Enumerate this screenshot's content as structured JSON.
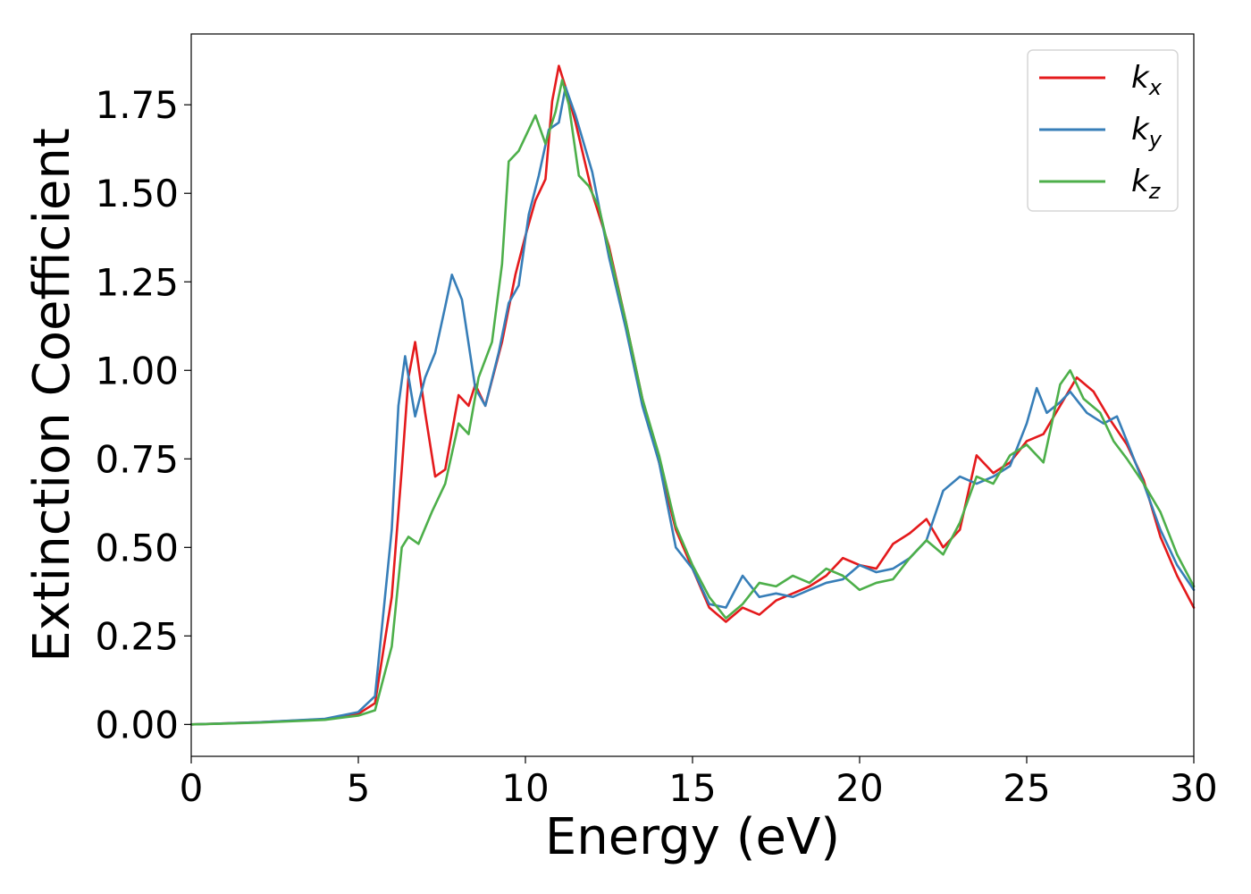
{
  "chart_data": {
    "type": "line",
    "xlabel": "Energy (eV)",
    "ylabel": "Extinction Coefficient",
    "xlim": [
      0,
      30
    ],
    "ylim": [
      -0.09,
      1.95
    ],
    "x_ticks": [
      0,
      5,
      10,
      15,
      20,
      25,
      30
    ],
    "y_ticks": [
      0.0,
      0.25,
      0.5,
      0.75,
      1.0,
      1.25,
      1.5,
      1.75
    ],
    "x_tick_labels": [
      "0",
      "5",
      "10",
      "15",
      "20",
      "25",
      "30"
    ],
    "y_tick_labels": [
      "0.00",
      "0.25",
      "0.50",
      "0.75",
      "1.00",
      "1.25",
      "1.50",
      "1.75"
    ],
    "grid": false,
    "legend_position": "top-right",
    "series": [
      {
        "name": "k_x",
        "legend_base": "k",
        "legend_sub": "x",
        "color": "#e41a1c",
        "points": [
          [
            0,
            0
          ],
          [
            2,
            0.006
          ],
          [
            4,
            0.015
          ],
          [
            5,
            0.03
          ],
          [
            5.5,
            0.06
          ],
          [
            6.0,
            0.36
          ],
          [
            6.3,
            0.72
          ],
          [
            6.5,
            0.98
          ],
          [
            6.7,
            1.08
          ],
          [
            7.0,
            0.88
          ],
          [
            7.3,
            0.7
          ],
          [
            7.6,
            0.72
          ],
          [
            8.0,
            0.93
          ],
          [
            8.3,
            0.9
          ],
          [
            8.5,
            0.96
          ],
          [
            8.8,
            0.9
          ],
          [
            9.3,
            1.08
          ],
          [
            9.7,
            1.27
          ],
          [
            10.0,
            1.38
          ],
          [
            10.3,
            1.48
          ],
          [
            10.6,
            1.54
          ],
          [
            10.8,
            1.76
          ],
          [
            11.0,
            1.86
          ],
          [
            11.2,
            1.8
          ],
          [
            11.5,
            1.7
          ],
          [
            12.0,
            1.5
          ],
          [
            12.5,
            1.35
          ],
          [
            13.0,
            1.14
          ],
          [
            13.5,
            0.92
          ],
          [
            14.0,
            0.74
          ],
          [
            14.5,
            0.55
          ],
          [
            15.0,
            0.44
          ],
          [
            15.5,
            0.33
          ],
          [
            16.0,
            0.29
          ],
          [
            16.5,
            0.33
          ],
          [
            17.0,
            0.31
          ],
          [
            17.5,
            0.35
          ],
          [
            18.0,
            0.37
          ],
          [
            18.5,
            0.39
          ],
          [
            19.0,
            0.42
          ],
          [
            19.5,
            0.47
          ],
          [
            20.0,
            0.45
          ],
          [
            20.5,
            0.44
          ],
          [
            21.0,
            0.51
          ],
          [
            21.5,
            0.54
          ],
          [
            22.0,
            0.58
          ],
          [
            22.5,
            0.5
          ],
          [
            23.0,
            0.55
          ],
          [
            23.5,
            0.76
          ],
          [
            24.0,
            0.71
          ],
          [
            24.5,
            0.74
          ],
          [
            25.0,
            0.8
          ],
          [
            25.5,
            0.82
          ],
          [
            26.0,
            0.9
          ],
          [
            26.5,
            0.98
          ],
          [
            27.0,
            0.94
          ],
          [
            27.5,
            0.86
          ],
          [
            28.0,
            0.79
          ],
          [
            28.5,
            0.69
          ],
          [
            29.0,
            0.53
          ],
          [
            29.5,
            0.42
          ],
          [
            30.0,
            0.33
          ]
        ]
      },
      {
        "name": "k_y",
        "legend_base": "k",
        "legend_sub": "y",
        "color": "#377eb8",
        "points": [
          [
            0,
            0
          ],
          [
            2,
            0.006
          ],
          [
            4,
            0.016
          ],
          [
            5,
            0.035
          ],
          [
            5.5,
            0.08
          ],
          [
            6.0,
            0.55
          ],
          [
            6.2,
            0.9
          ],
          [
            6.4,
            1.04
          ],
          [
            6.7,
            0.87
          ],
          [
            7.0,
            0.98
          ],
          [
            7.3,
            1.05
          ],
          [
            7.6,
            1.18
          ],
          [
            7.8,
            1.27
          ],
          [
            8.1,
            1.2
          ],
          [
            8.5,
            0.95
          ],
          [
            8.8,
            0.9
          ],
          [
            9.2,
            1.05
          ],
          [
            9.5,
            1.19
          ],
          [
            9.8,
            1.24
          ],
          [
            10.1,
            1.44
          ],
          [
            10.4,
            1.55
          ],
          [
            10.7,
            1.68
          ],
          [
            11.0,
            1.7
          ],
          [
            11.2,
            1.8
          ],
          [
            11.5,
            1.72
          ],
          [
            12.0,
            1.56
          ],
          [
            12.5,
            1.32
          ],
          [
            13.0,
            1.12
          ],
          [
            13.5,
            0.9
          ],
          [
            14.0,
            0.74
          ],
          [
            14.5,
            0.5
          ],
          [
            15.0,
            0.44
          ],
          [
            15.5,
            0.34
          ],
          [
            16.0,
            0.33
          ],
          [
            16.5,
            0.42
          ],
          [
            17.0,
            0.36
          ],
          [
            17.5,
            0.37
          ],
          [
            18.0,
            0.36
          ],
          [
            18.5,
            0.38
          ],
          [
            19.0,
            0.4
          ],
          [
            19.5,
            0.41
          ],
          [
            20.0,
            0.45
          ],
          [
            20.5,
            0.43
          ],
          [
            21.0,
            0.44
          ],
          [
            21.5,
            0.47
          ],
          [
            22.0,
            0.52
          ],
          [
            22.5,
            0.66
          ],
          [
            23.0,
            0.7
          ],
          [
            23.5,
            0.68
          ],
          [
            24.0,
            0.7
          ],
          [
            24.5,
            0.73
          ],
          [
            25.0,
            0.85
          ],
          [
            25.3,
            0.95
          ],
          [
            25.6,
            0.88
          ],
          [
            26.0,
            0.91
          ],
          [
            26.3,
            0.94
          ],
          [
            26.8,
            0.88
          ],
          [
            27.3,
            0.85
          ],
          [
            27.7,
            0.87
          ],
          [
            28.0,
            0.8
          ],
          [
            28.5,
            0.68
          ],
          [
            29.0,
            0.55
          ],
          [
            29.5,
            0.45
          ],
          [
            30.0,
            0.38
          ]
        ]
      },
      {
        "name": "k_z",
        "legend_base": "k",
        "legend_sub": "z",
        "color": "#4daf4a",
        "points": [
          [
            0,
            0
          ],
          [
            2,
            0.005
          ],
          [
            4,
            0.013
          ],
          [
            5,
            0.025
          ],
          [
            5.5,
            0.04
          ],
          [
            6.0,
            0.22
          ],
          [
            6.3,
            0.5
          ],
          [
            6.5,
            0.53
          ],
          [
            6.8,
            0.51
          ],
          [
            7.2,
            0.6
          ],
          [
            7.6,
            0.68
          ],
          [
            8.0,
            0.85
          ],
          [
            8.3,
            0.82
          ],
          [
            8.6,
            0.98
          ],
          [
            9.0,
            1.08
          ],
          [
            9.3,
            1.3
          ],
          [
            9.5,
            1.59
          ],
          [
            9.8,
            1.62
          ],
          [
            10.1,
            1.68
          ],
          [
            10.3,
            1.72
          ],
          [
            10.6,
            1.64
          ],
          [
            10.9,
            1.73
          ],
          [
            11.1,
            1.82
          ],
          [
            11.3,
            1.75
          ],
          [
            11.6,
            1.55
          ],
          [
            11.9,
            1.52
          ],
          [
            12.2,
            1.46
          ],
          [
            12.5,
            1.34
          ],
          [
            13.0,
            1.14
          ],
          [
            13.5,
            0.92
          ],
          [
            14.0,
            0.76
          ],
          [
            14.5,
            0.56
          ],
          [
            15.0,
            0.45
          ],
          [
            15.5,
            0.36
          ],
          [
            16.0,
            0.3
          ],
          [
            16.5,
            0.34
          ],
          [
            17.0,
            0.4
          ],
          [
            17.5,
            0.39
          ],
          [
            18.0,
            0.42
          ],
          [
            18.5,
            0.4
          ],
          [
            19.0,
            0.44
          ],
          [
            19.5,
            0.42
          ],
          [
            20.0,
            0.38
          ],
          [
            20.5,
            0.4
          ],
          [
            21.0,
            0.41
          ],
          [
            21.5,
            0.47
          ],
          [
            22.0,
            0.52
          ],
          [
            22.5,
            0.48
          ],
          [
            23.0,
            0.57
          ],
          [
            23.5,
            0.7
          ],
          [
            24.0,
            0.68
          ],
          [
            24.5,
            0.76
          ],
          [
            25.0,
            0.79
          ],
          [
            25.5,
            0.74
          ],
          [
            26.0,
            0.96
          ],
          [
            26.3,
            1.0
          ],
          [
            26.7,
            0.92
          ],
          [
            27.2,
            0.88
          ],
          [
            27.6,
            0.8
          ],
          [
            28.0,
            0.75
          ],
          [
            28.5,
            0.68
          ],
          [
            29.0,
            0.6
          ],
          [
            29.5,
            0.48
          ],
          [
            30.0,
            0.39
          ]
        ]
      }
    ]
  }
}
